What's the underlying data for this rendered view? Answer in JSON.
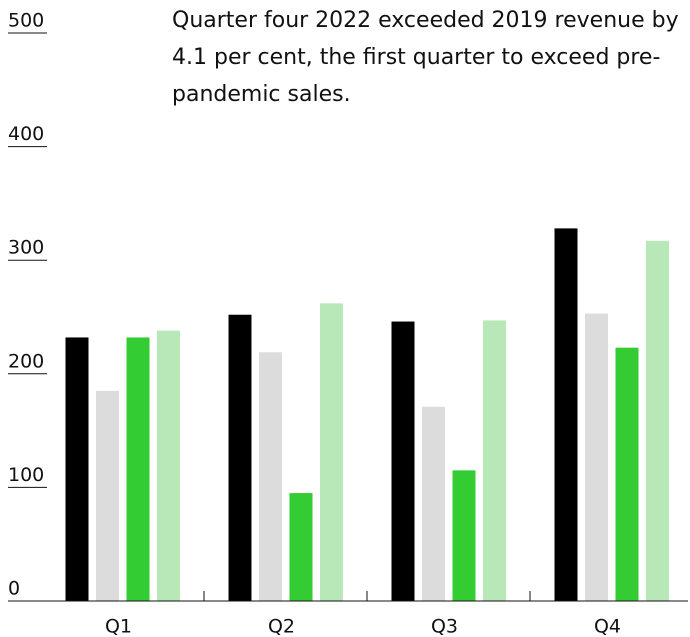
{
  "chart_data": {
    "type": "bar",
    "annotation": "Quarter four 2022 exceeded 2019 revenue by 4.1 per cent, the first quarter to exceed pre-pandemic sales.",
    "categories": [
      "Q1",
      "Q2",
      "Q3",
      "Q4"
    ],
    "series": [
      {
        "color": "#000000",
        "values": [
          232,
          252,
          246,
          328
        ]
      },
      {
        "color": "#dcdcdc",
        "values": [
          185,
          219,
          171,
          253
        ]
      },
      {
        "color": "#33cc33",
        "values": [
          232,
          95,
          115,
          223
        ]
      },
      {
        "color": "#b8e8b8",
        "values": [
          238,
          262,
          247,
          317
        ]
      }
    ],
    "ylim": [
      0,
      500
    ],
    "yticks": [
      0,
      100,
      200,
      300,
      400,
      500
    ]
  }
}
